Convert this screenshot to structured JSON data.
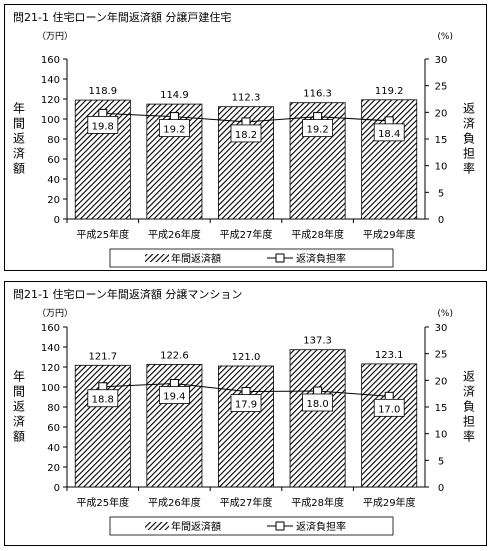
{
  "chart_data": [
    {
      "type": "bar",
      "title": "問21-1 住宅ローン年間返済額 分譲戸建住宅",
      "y_unit": "（万円）",
      "y2_unit": "(%)",
      "ylabel": "年間返済額",
      "y2label": "返済負担率",
      "categories": [
        "平成25年度",
        "平成26年度",
        "平成27年度",
        "平成28年度",
        "平成29年度"
      ],
      "ylim": [
        0,
        160
      ],
      "y_ticks": [
        "0",
        "20",
        "40",
        "60",
        "80",
        "100",
        "120",
        "140",
        "160"
      ],
      "y2lim": [
        0,
        30
      ],
      "y2_ticks": [
        "0",
        "5",
        "10",
        "15",
        "20",
        "25",
        "30"
      ],
      "series": [
        {
          "name": "年間返済額",
          "type": "bar",
          "values": [
            118.9,
            114.9,
            112.3,
            116.3,
            119.2
          ],
          "labels": [
            "118.9",
            "114.9",
            "112.3",
            "116.3",
            "119.2"
          ]
        },
        {
          "name": "返済負担率",
          "type": "line",
          "axis": "right",
          "values": [
            19.8,
            19.2,
            18.2,
            19.2,
            18.4
          ],
          "labels": [
            "19.8",
            "19.2",
            "18.2",
            "19.2",
            "18.4"
          ]
        }
      ],
      "legend_position": "bottom",
      "grid": false
    },
    {
      "type": "bar",
      "title": "問21-1 住宅ローン年間返済額 分譲マンション",
      "y_unit": "（万円）",
      "y2_unit": "(%)",
      "ylabel": "年間返済額",
      "y2label": "返済負担率",
      "categories": [
        "平成25年度",
        "平成26年度",
        "平成27年度",
        "平成28年度",
        "平成29年度"
      ],
      "ylim": [
        0,
        160
      ],
      "y_ticks": [
        "0",
        "20",
        "40",
        "60",
        "80",
        "100",
        "120",
        "140",
        "160"
      ],
      "y2lim": [
        0,
        30
      ],
      "y2_ticks": [
        "0",
        "5",
        "10",
        "15",
        "20",
        "25",
        "30"
      ],
      "series": [
        {
          "name": "年間返済額",
          "type": "bar",
          "values": [
            121.7,
            122.6,
            121.0,
            137.3,
            123.1
          ],
          "labels": [
            "121.7",
            "122.6",
            "121.0",
            "137.3",
            "123.1"
          ]
        },
        {
          "name": "返済負担率",
          "type": "line",
          "axis": "right",
          "values": [
            18.8,
            19.4,
            17.9,
            18.0,
            17.0
          ],
          "labels": [
            "18.8",
            "19.4",
            "17.9",
            "18.0",
            "17.0"
          ]
        }
      ],
      "legend_position": "bottom",
      "grid": false
    }
  ]
}
